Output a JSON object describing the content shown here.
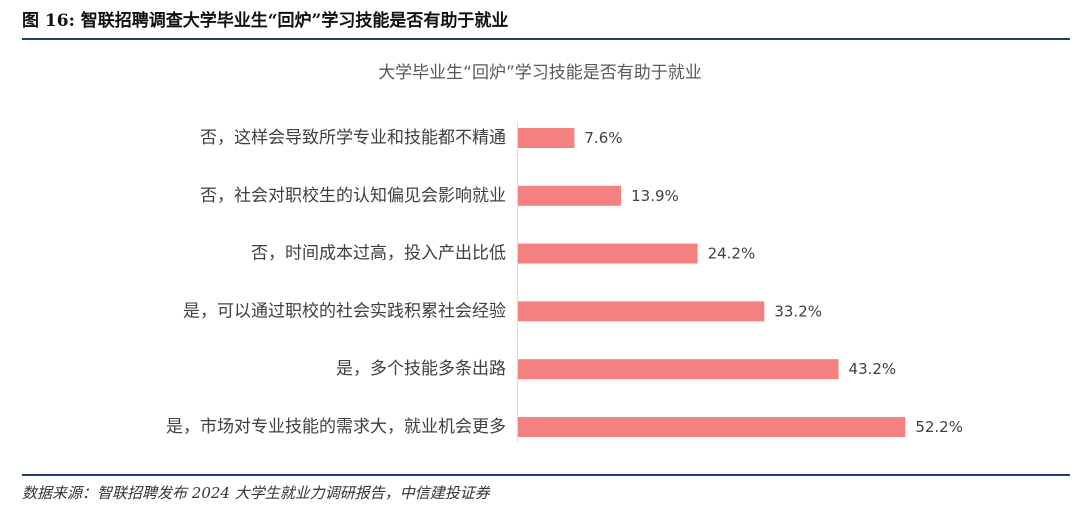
{
  "figure_title": "图 16: 智联招聘调查大学毕业生“回炉”学习技能是否有助于就业",
  "source": "数据来源：智联招聘发布 2024 大学生就业力调研报告，中信建投证券",
  "colors": {
    "bar": "#f4807f",
    "rule": "#1f3f73"
  },
  "chart_data": {
    "type": "bar",
    "orientation": "horizontal",
    "title": "大学毕业生“回炉”学习技能是否有助于就业",
    "categories": [
      "否，这样会导致所学专业和技能都不精通",
      "否，社会对职校生的认知偏见会影响就业",
      "否，时间成本过高，投入产出比低",
      "是，可以通过职校的社会实践积累社会经验",
      "是，多个技能多条出路",
      "是，市场对专业技能的需求大，就业机会更多"
    ],
    "values": [
      7.6,
      13.9,
      24.2,
      33.2,
      43.2,
      52.2
    ],
    "data_labels": [
      "7.6%",
      "13.9%",
      "24.2%",
      "33.2%",
      "43.2%",
      "52.2%"
    ],
    "unit": "%",
    "xlim": [
      0,
      60
    ],
    "grid": false,
    "legend": "none"
  }
}
